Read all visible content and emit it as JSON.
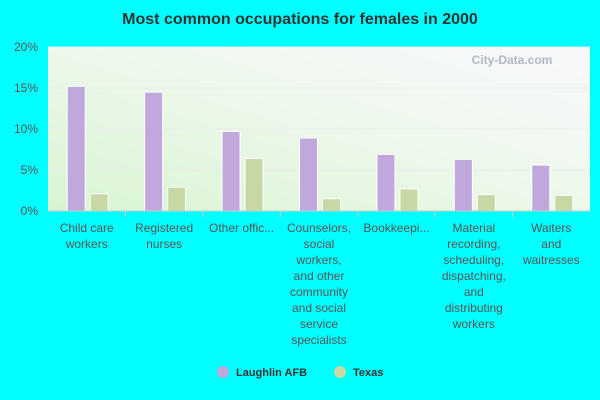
{
  "chart_data": {
    "type": "bar",
    "title": "Most common occupations for females in 2000",
    "xlabel": "",
    "ylabel": "",
    "ylim": [
      0,
      20
    ],
    "yticks": [
      0,
      5,
      10,
      15,
      20
    ],
    "ytick_labels": [
      "0%",
      "5%",
      "10%",
      "15%",
      "20%"
    ],
    "categories": [
      [
        "Child care",
        "workers"
      ],
      [
        "Registered",
        "nurses"
      ],
      [
        "Other offic..."
      ],
      [
        "Counselors,",
        "social",
        "workers,",
        "and other",
        "community",
        "and social",
        "service",
        "specialists"
      ],
      [
        "Bookkeepi..."
      ],
      [
        "Material",
        "recording,",
        "scheduling,",
        "dispatching,",
        "and",
        "distributing",
        "workers"
      ],
      [
        "Waiters",
        "and",
        "waitresses"
      ]
    ],
    "series": [
      {
        "name": "Laughlin AFB",
        "color": "#c0a8dc",
        "values": [
          15.2,
          14.5,
          9.7,
          8.9,
          6.9,
          6.3,
          5.6
        ]
      },
      {
        "name": "Texas",
        "color": "#c8d8a4",
        "values": [
          2.1,
          2.9,
          6.4,
          1.5,
          2.7,
          2.0,
          1.9
        ]
      }
    ],
    "legend": "bottom",
    "watermark": "City-Data.com"
  }
}
